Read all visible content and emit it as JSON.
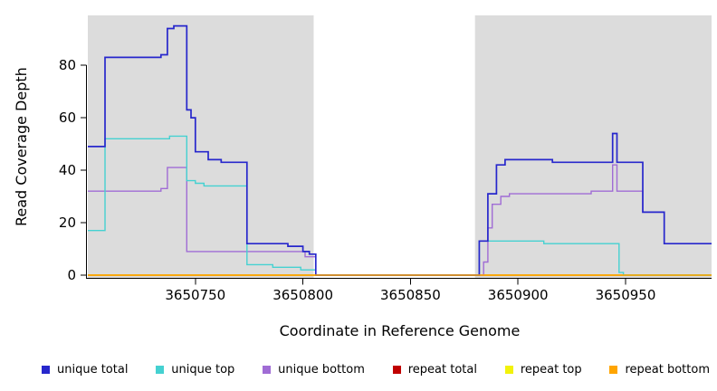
{
  "chart_data": {
    "type": "line",
    "subtype": "step-coverage-plot",
    "xlabel": "Coordinate in Reference Genome",
    "ylabel": "Read Coverage Depth",
    "x_range": [
      3650700,
      3650990
    ],
    "y_range": [
      0,
      99
    ],
    "x_ticks": [
      3650750,
      3650800,
      3650850,
      3650900,
      3650950
    ],
    "y_ticks": [
      0,
      20,
      40,
      60,
      80
    ],
    "grid": false,
    "legend_position": "bottom",
    "shading_color": "#dcdcdc",
    "shaded_regions": [
      {
        "x0": 3650700,
        "x1": 3650805
      },
      {
        "x0": 3650880,
        "x1": 3650990
      }
    ],
    "series": [
      {
        "name": "unique total",
        "color": "#2727cc",
        "points": [
          [
            3650700,
            49
          ],
          [
            3650708,
            83
          ],
          [
            3650734,
            84
          ],
          [
            3650737,
            94
          ],
          [
            3650740,
            95
          ],
          [
            3650746,
            63
          ],
          [
            3650748,
            60
          ],
          [
            3650750,
            47
          ],
          [
            3650756,
            44
          ],
          [
            3650762,
            43
          ],
          [
            3650774,
            12
          ],
          [
            3650793,
            11
          ],
          [
            3650800,
            9
          ],
          [
            3650803,
            8
          ],
          [
            3650806,
            0
          ],
          [
            3650882,
            13
          ],
          [
            3650886,
            31
          ],
          [
            3650890,
            42
          ],
          [
            3650894,
            44
          ],
          [
            3650916,
            43
          ],
          [
            3650944,
            54
          ],
          [
            3650946,
            43
          ],
          [
            3650958,
            24
          ],
          [
            3650968,
            12
          ],
          [
            3650990,
            12
          ]
        ]
      },
      {
        "name": "unique top",
        "color": "#45d1d1",
        "points": [
          [
            3650700,
            17
          ],
          [
            3650708,
            52
          ],
          [
            3650738,
            53
          ],
          [
            3650746,
            36
          ],
          [
            3650750,
            35
          ],
          [
            3650754,
            34
          ],
          [
            3650774,
            4
          ],
          [
            3650786,
            3
          ],
          [
            3650799,
            2
          ],
          [
            3650806,
            0
          ],
          [
            3650882,
            13
          ],
          [
            3650912,
            12
          ],
          [
            3650947,
            1
          ],
          [
            3650949,
            0
          ],
          [
            3650990,
            0
          ]
        ]
      },
      {
        "name": "unique bottom",
        "color": "#a06cd5",
        "points": [
          [
            3650700,
            32
          ],
          [
            3650734,
            33
          ],
          [
            3650737,
            41
          ],
          [
            3650746,
            9
          ],
          [
            3650795,
            9
          ],
          [
            3650801,
            7
          ],
          [
            3650806,
            0
          ],
          [
            3650884,
            5
          ],
          [
            3650886,
            18
          ],
          [
            3650888,
            27
          ],
          [
            3650892,
            30
          ],
          [
            3650896,
            31
          ],
          [
            3650934,
            32
          ],
          [
            3650944,
            42
          ],
          [
            3650946,
            32
          ],
          [
            3650958,
            24
          ],
          [
            3650968,
            12
          ],
          [
            3650990,
            12
          ]
        ]
      },
      {
        "name": "repeat total",
        "color": "#c00000",
        "points": [
          [
            3650700,
            0
          ],
          [
            3650990,
            0
          ]
        ]
      },
      {
        "name": "repeat top",
        "color": "#f2f20a",
        "points": [
          [
            3650700,
            0
          ],
          [
            3650990,
            0
          ]
        ]
      },
      {
        "name": "repeat bottom",
        "color": "#ffa500",
        "points": [
          [
            3650700,
            0
          ],
          [
            3650990,
            0
          ]
        ]
      }
    ],
    "draw_order": [
      "repeat total",
      "repeat top",
      "unique bottom",
      "unique top",
      "unique total",
      "repeat bottom"
    ]
  }
}
